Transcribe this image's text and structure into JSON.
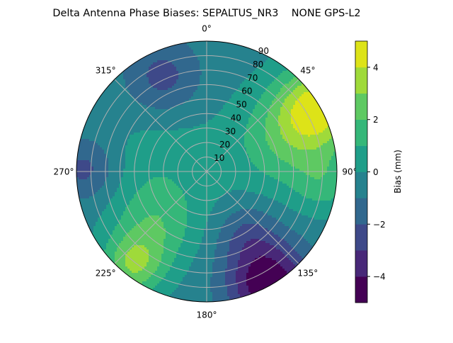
{
  "chart_data": {
    "type": "heatmap",
    "subtype": "polar filled contour",
    "title": "Delta Antenna Phase Biases: SEPALTUS_NR3    NONE GPS-L2",
    "angular_ticks": [
      "0°",
      "45°",
      "90°",
      "135°",
      "180°",
      "225°",
      "270°",
      "315°"
    ],
    "angular_tick_values": [
      0,
      45,
      90,
      135,
      180,
      225,
      270,
      315
    ],
    "angular_direction": "clockwise, 0° at top",
    "radial_ticks": [
      "10",
      "20",
      "30",
      "40",
      "50",
      "60",
      "70",
      "80",
      "90"
    ],
    "radial_tick_values": [
      10,
      20,
      30,
      40,
      50,
      60,
      70,
      80,
      90
    ],
    "radial_range": [
      0,
      90
    ],
    "grid": true,
    "colorbar": {
      "label": "Bias (mm)",
      "range": [
        -5,
        5
      ],
      "levels": [
        -5,
        -4,
        -3,
        -2,
        -1,
        0,
        1,
        2,
        3,
        4,
        5
      ],
      "ticks": [
        "−4",
        "−2",
        "0",
        "2",
        "4"
      ],
      "tick_values": [
        -4,
        -2,
        0,
        2,
        4
      ],
      "colormap": "viridis",
      "colors": [
        "#440154",
        "#482878",
        "#3e4989",
        "#31688e",
        "#26828e",
        "#1f9e89",
        "#35b779",
        "#5ec962",
        "#9fda3a",
        "#dde318"
      ]
    },
    "field_estimate": {
      "base": -0.4,
      "features": [
        {
          "azimuth": 60,
          "zenith": 89,
          "bias": 4.6,
          "spread": 20
        },
        {
          "azimuth": 69,
          "zenith": 57,
          "bias": 2.1,
          "spread": 25
        },
        {
          "azimuth": 218,
          "zenith": 82,
          "bias": 3.1,
          "spread": 15
        },
        {
          "azimuth": 223,
          "zenith": 52,
          "bias": 1.8,
          "spread": 20
        },
        {
          "azimuth": 335,
          "zenith": 72,
          "bias": -2.0,
          "spread": 18
        },
        {
          "azimuth": 271,
          "zenith": 84,
          "bias": -2.0,
          "spread": 15
        },
        {
          "azimuth": 151,
          "zenith": 88,
          "bias": -4.6,
          "spread": 20
        },
        {
          "azimuth": 147,
          "zenith": 51,
          "bias": -1.5,
          "spread": 15
        },
        {
          "azimuth": 270,
          "zenith": 30,
          "bias": 1.0,
          "spread": 30
        },
        {
          "azimuth": 96,
          "zenith": 82,
          "bias": 1.5,
          "spread": 15
        }
      ]
    }
  }
}
